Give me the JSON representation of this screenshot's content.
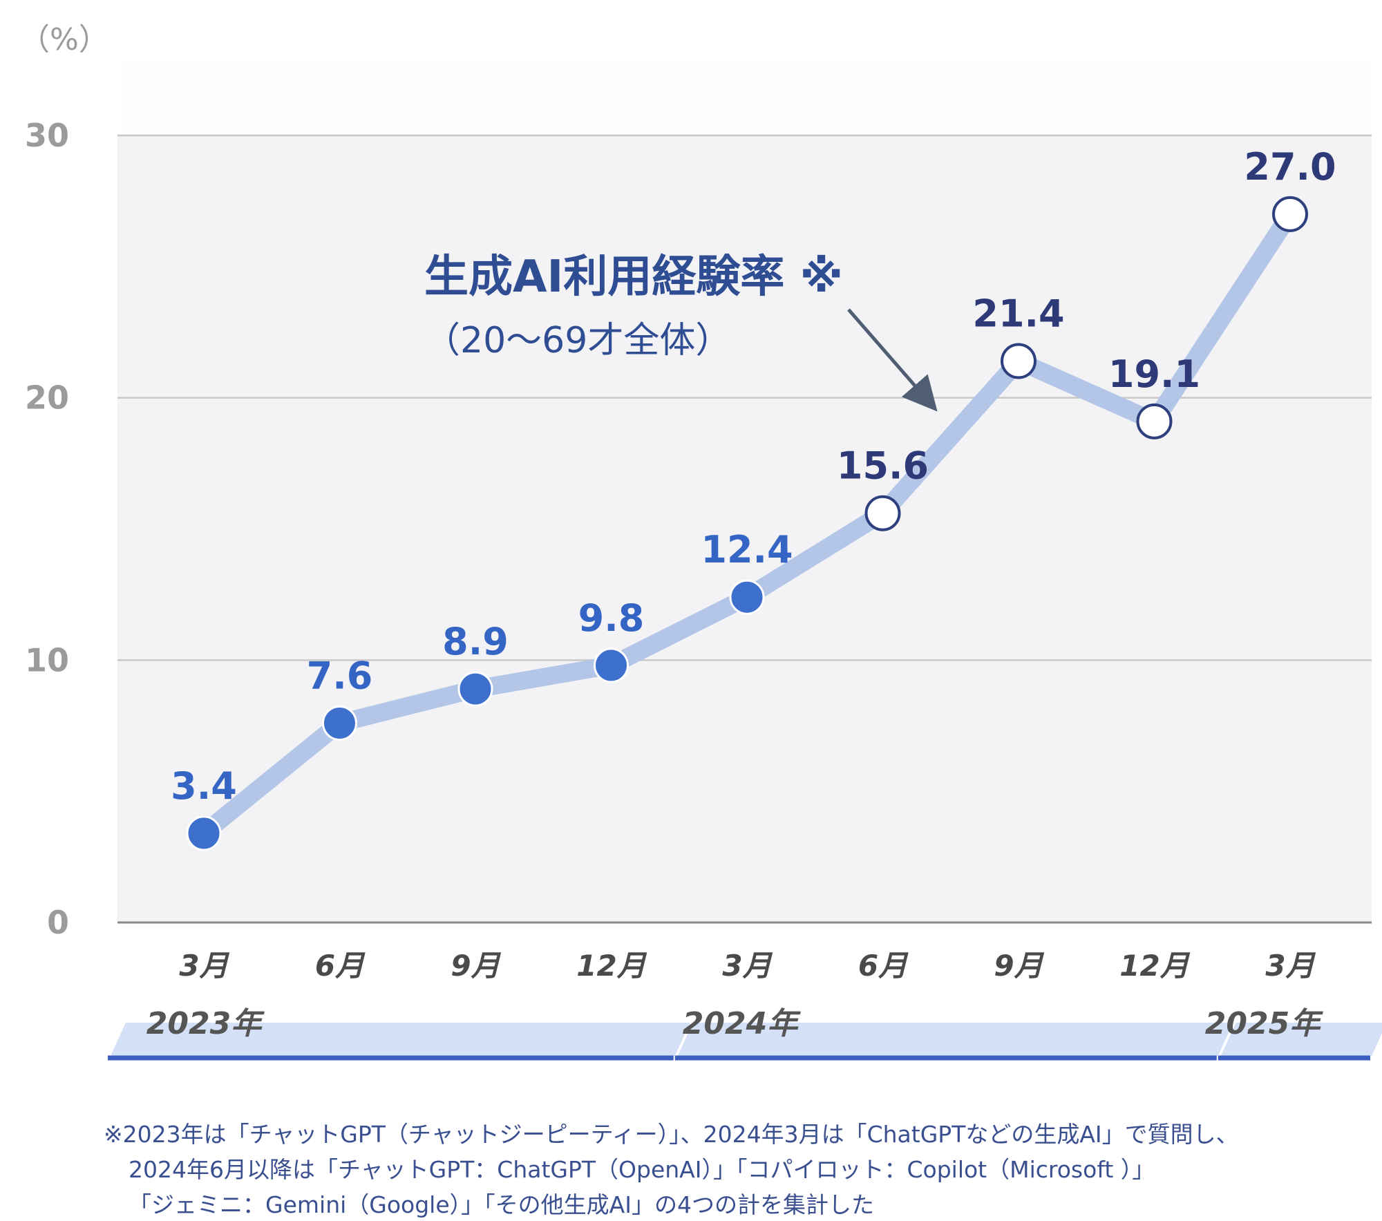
{
  "chart_data": {
    "type": "line",
    "unit_label": "（%）",
    "yticks": [
      0,
      10,
      20,
      30
    ],
    "ylim": [
      0,
      30
    ],
    "grid": true,
    "categories": [
      "3月",
      "6月",
      "9月",
      "12月",
      "3月",
      "6月",
      "9月",
      "12月",
      "3月"
    ],
    "values": [
      3.4,
      7.6,
      8.9,
      9.8,
      12.4,
      15.6,
      21.4,
      19.1,
      27.0
    ],
    "labels": [
      "3.4",
      "7.6",
      "8.9",
      "9.8",
      "12.4",
      "15.6",
      "21.4",
      "19.1",
      "27.0"
    ],
    "years": [
      {
        "label": "2023年",
        "from": 0,
        "to": 3
      },
      {
        "label": "2024年",
        "from": 4,
        "to": 7
      },
      {
        "label": "2025年",
        "from": 8,
        "to": 8
      }
    ],
    "annotation": {
      "title": "生成AI利用経験率 ※",
      "subtitle": "（20～69才全体）"
    },
    "colors": {
      "line": "#b3c6e8",
      "filled_marker": "#3d6fcc",
      "hollow_marker_stroke": "#2e3f7e",
      "label_blue": "#3565c4",
      "label_navy": "#2e3a78",
      "grid": "#c8c8c8",
      "plot_bg": "#f3f3f6",
      "year_band": "#d3e0f6",
      "year_underline": "#3a5fbf"
    }
  },
  "footnote": [
    "※2023年は「チャットGPT（チャットジーピーティー）」、2024年3月は「ChatGPTなどの生成AI」で質問し、",
    "2024年6月以降は「チャットGPT：ChatGPT（OpenAI）」「コパイロット：Copilot（Microsoft ）」",
    "「ジェミニ：Gemini（Google）」「その他生成AI」の4つの計を集計した"
  ]
}
